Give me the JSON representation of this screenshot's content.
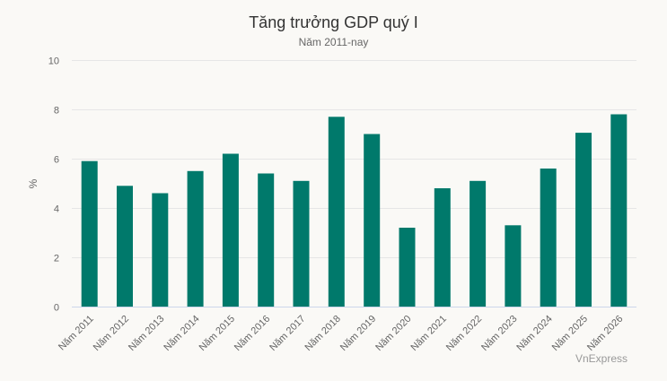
{
  "header": {
    "title": "Tăng trưởng GDP quý I",
    "subtitle": "Năm 2011-nay"
  },
  "credit": "VnExpress",
  "colors": {
    "bar": "#00796b",
    "grid": "#e6e6e6",
    "axis_line": "#ccd6eb",
    "background": "#faf9f6",
    "tick_text": "#666666"
  },
  "chart_data": {
    "type": "bar",
    "title": "Tăng trưởng GDP quý I",
    "subtitle": "Năm 2011-nay",
    "xlabel": "",
    "ylabel": "%",
    "ylim": [
      0,
      10
    ],
    "yticks": [
      0,
      2,
      4,
      6,
      8,
      10
    ],
    "grid": true,
    "legend": null,
    "categories": [
      "Năm 2011",
      "Năm 2012",
      "Năm 2013",
      "Năm 2014",
      "Năm 2015",
      "Năm 2016",
      "Năm 2017",
      "Năm 2018",
      "Năm 2019",
      "Năm 2020",
      "Năm 2021",
      "Năm 2022",
      "Năm 2023",
      "Năm 2024",
      "Năm 2025",
      "Năm 2026"
    ],
    "series": [
      {
        "name": "Tăng trưởng GDP quý I",
        "values": [
          5.9,
          4.9,
          4.6,
          5.5,
          6.2,
          5.4,
          5.1,
          7.7,
          7.0,
          3.2,
          4.8,
          5.1,
          3.3,
          5.6,
          7.05,
          7.8
        ]
      }
    ],
    "credit": "VnExpress"
  }
}
